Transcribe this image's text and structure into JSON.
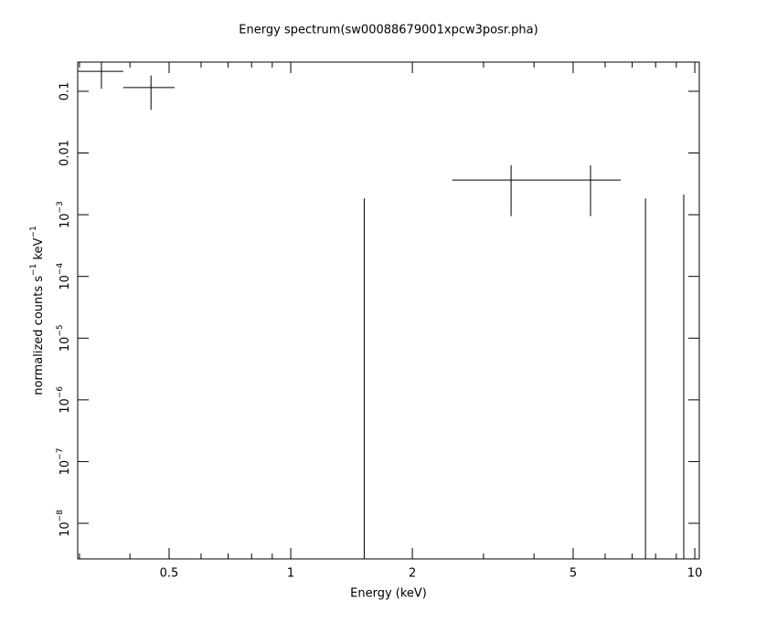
{
  "chart_data": {
    "type": "scatter",
    "title": "Energy spectrum(sw00088679001xpcw3posr.pha)",
    "xlabel": "Energy (keV)",
    "ylabel": [
      "normalized counts s",
      "−1",
      " keV",
      "−1"
    ],
    "xscale": "log",
    "yscale": "log",
    "xlim": [
      0.297,
      10.26
    ],
    "ylim": [
      2.65e-09,
      0.297
    ],
    "xticks": [
      0.5,
      1,
      2,
      5,
      10
    ],
    "xminor": [
      0.3,
      0.4,
      0.6,
      0.7,
      0.8,
      0.9,
      3,
      4,
      6,
      7,
      8,
      9
    ],
    "yticks": [
      0.1,
      0.01,
      {
        "value": 0.001,
        "label": "10",
        "exponent": "−3"
      },
      {
        "value": 0.0001,
        "label": "10",
        "exponent": "−4"
      },
      {
        "value": 1e-05,
        "label": "10",
        "exponent": "−5"
      },
      {
        "value": 1e-06,
        "label": "10",
        "exponent": "−6"
      },
      {
        "value": 1e-07,
        "label": "10",
        "exponent": "−7"
      },
      {
        "value": 1e-08,
        "label": "10",
        "exponent": "−8"
      }
    ],
    "series": [
      {
        "color": "#000000",
        "x": [
          0.34,
          0.451,
          1.52,
          3.51,
          5.52,
          7.55,
          9.39
        ],
        "x_low": [
          0.297,
          0.385,
          null,
          2.51,
          4.41,
          null,
          null
        ],
        "x_high": [
          0.385,
          0.516,
          null,
          4.41,
          6.56,
          null,
          null
        ],
        "values": [
          0.21,
          0.115,
          0,
          0.00365,
          0.00365,
          0,
          0
        ],
        "yerr": [
          0.1,
          0.065,
          0.00184,
          0.0027,
          0.0027,
          0.00184,
          0.00212
        ]
      }
    ]
  }
}
